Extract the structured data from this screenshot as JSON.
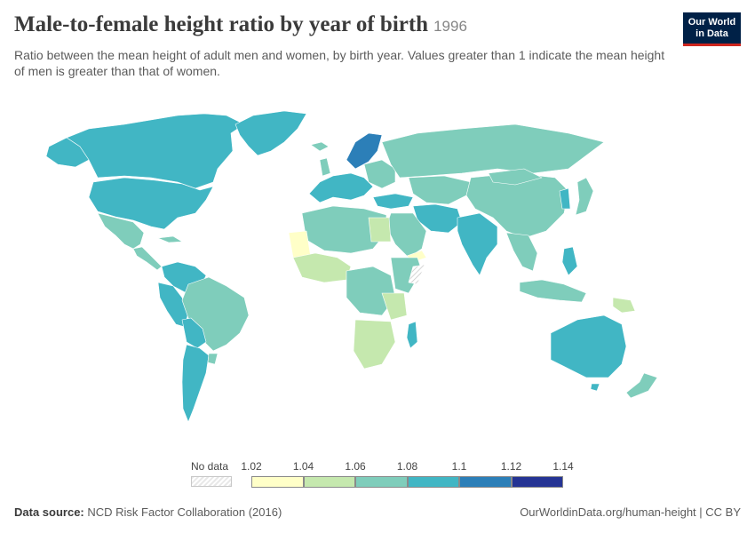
{
  "header": {
    "title": "Male-to-female height ratio by year of birth",
    "year": "1996",
    "subtitle": "Ratio between the mean height of adult men and women, by birth year. Values greater than 1 indicate the mean height of men is greater than that of women."
  },
  "logo": {
    "line1": "Our World",
    "line2": "in Data"
  },
  "legend": {
    "no_data_label": "No data",
    "ticks": [
      "1.02",
      "1.04",
      "1.06",
      "1.08",
      "1.1",
      "1.12",
      "1.14"
    ],
    "bin_colors": [
      "#ffffc8",
      "#c5e8ae",
      "#7fcdbb",
      "#41b6c4",
      "#2c7fb8",
      "#253494"
    ]
  },
  "footer": {
    "source_label": "Data source:",
    "source_text": "NCD Risk Factor Collaboration (2016)",
    "url": "OurWorldinData.org/human-height | CC BY"
  },
  "map_colors": {
    "b1": "#ffffc8",
    "b2": "#c5e8ae",
    "b3": "#7fcdbb",
    "b4": "#41b6c4",
    "b5": "#2c7fb8",
    "b6": "#253494"
  }
}
